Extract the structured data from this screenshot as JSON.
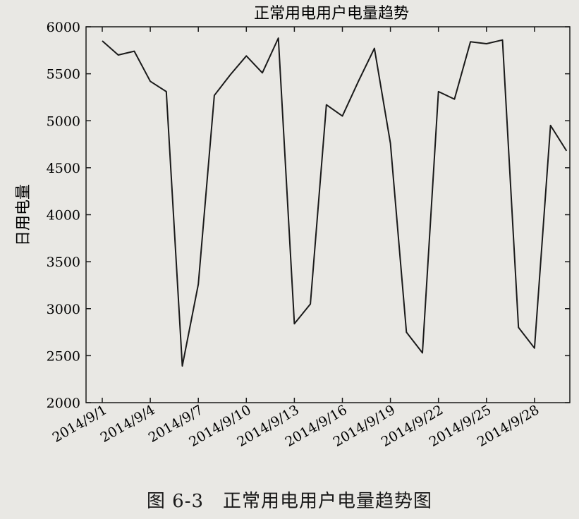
{
  "chart_data": {
    "type": "line",
    "title": "正常用电用户电量趋势",
    "xlabel": "",
    "ylabel": "日用电量",
    "ylim": [
      2000,
      6000
    ],
    "yticks": [
      2000,
      2500,
      3000,
      3500,
      4000,
      4500,
      5000,
      5500,
      6000
    ],
    "xtick_labels": [
      "2014/9/1",
      "2014/9/4",
      "2014/9/7",
      "2014/9/10",
      "2014/9/13",
      "2014/9/16",
      "2014/9/19",
      "2014/9/22",
      "2014/9/25",
      "2014/9/28"
    ],
    "grid": false,
    "legend": false,
    "series": [
      {
        "x": [
          "2014/9/1",
          "2014/9/2",
          "2014/9/3",
          "2014/9/4",
          "2014/9/5",
          "2014/9/6",
          "2014/9/7",
          "2014/9/8",
          "2014/9/9",
          "2014/9/10",
          "2014/9/11",
          "2014/9/12",
          "2014/9/13",
          "2014/9/14",
          "2014/9/15",
          "2014/9/16",
          "2014/9/17",
          "2014/9/18",
          "2014/9/19",
          "2014/9/20",
          "2014/9/21",
          "2014/9/22",
          "2014/9/23",
          "2014/9/24",
          "2014/9/25",
          "2014/9/26",
          "2014/9/27",
          "2014/9/28",
          "2014/9/29",
          "2014/9/30"
        ],
        "values": [
          5850,
          5700,
          5740,
          5420,
          5310,
          2390,
          3260,
          5270,
          5490,
          5690,
          5510,
          5880,
          2840,
          3050,
          5170,
          5050,
          5420,
          5770,
          4760,
          2750,
          2530,
          5310,
          5230,
          5840,
          5820,
          5860,
          2800,
          2580,
          4950,
          4680
        ]
      }
    ]
  },
  "figure_caption": "图 6-3　正常用电用户电量趋势图",
  "colors": {
    "line": "#1a1a1a",
    "axis": "#1a1a1a",
    "background": "#e9e8e4"
  }
}
